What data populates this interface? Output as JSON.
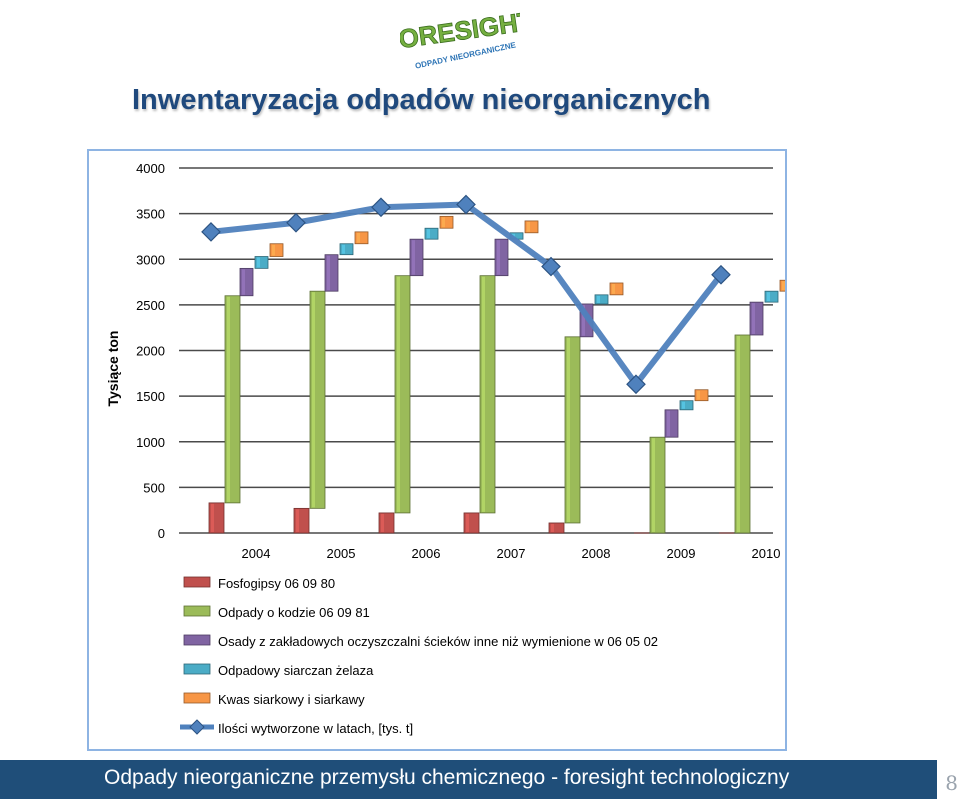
{
  "header": {
    "logo_text": "FORESIGHT",
    "logo_subtext": "ODPADY NIEORGANICZNE",
    "title": "Inwentaryzacja odpadów nieorganicznych"
  },
  "footer": {
    "text": "Odpady nieorganiczne przemysłu chemicznego - foresight technologiczny",
    "page_number": "8"
  },
  "chart_data": {
    "type": "bar",
    "ylabel": "Tysiące ton",
    "ylim": [
      0,
      4000
    ],
    "yticks": [
      "0",
      "500",
      "1000",
      "1500",
      "2000",
      "2500",
      "3000",
      "3500",
      "4000"
    ],
    "categories": [
      "2004",
      "2005",
      "2006",
      "2007",
      "2008",
      "2009",
      "2010"
    ],
    "grid": true,
    "legend_position": "bottom",
    "stacking": "waterfall",
    "series": [
      {
        "name": "Fosfogipsy 06 09 80",
        "color": "#c0504d",
        "values": [
          330,
          270,
          220,
          220,
          110,
          0,
          0
        ]
      },
      {
        "name": "Odpady o kodzie 06 09 81",
        "color": "#9bbb59",
        "values": [
          2270,
          2380,
          2600,
          2600,
          2040,
          1050,
          2170
        ]
      },
      {
        "name": "Osady z zakładowych oczyszczalni ścieków inne niż wymienione w 06 05 02",
        "color": "#8064a2",
        "values": [
          300,
          400,
          400,
          400,
          360,
          300,
          360
        ]
      },
      {
        "name": "Odpadowy siarczan żelaza",
        "color": "#4bacc6",
        "values": [
          130,
          120,
          120,
          70,
          100,
          100,
          120
        ]
      },
      {
        "name": "Kwas siarkowy i siarkawy",
        "color": "#f79646",
        "values": [
          140,
          130,
          130,
          130,
          130,
          120,
          120
        ]
      }
    ],
    "line": {
      "name": "Ilości wytworzone w latach, [tys. t]",
      "color": "#4f81bd",
      "values": [
        3300,
        3400,
        3570,
        3600,
        2920,
        1630,
        2830
      ]
    }
  }
}
